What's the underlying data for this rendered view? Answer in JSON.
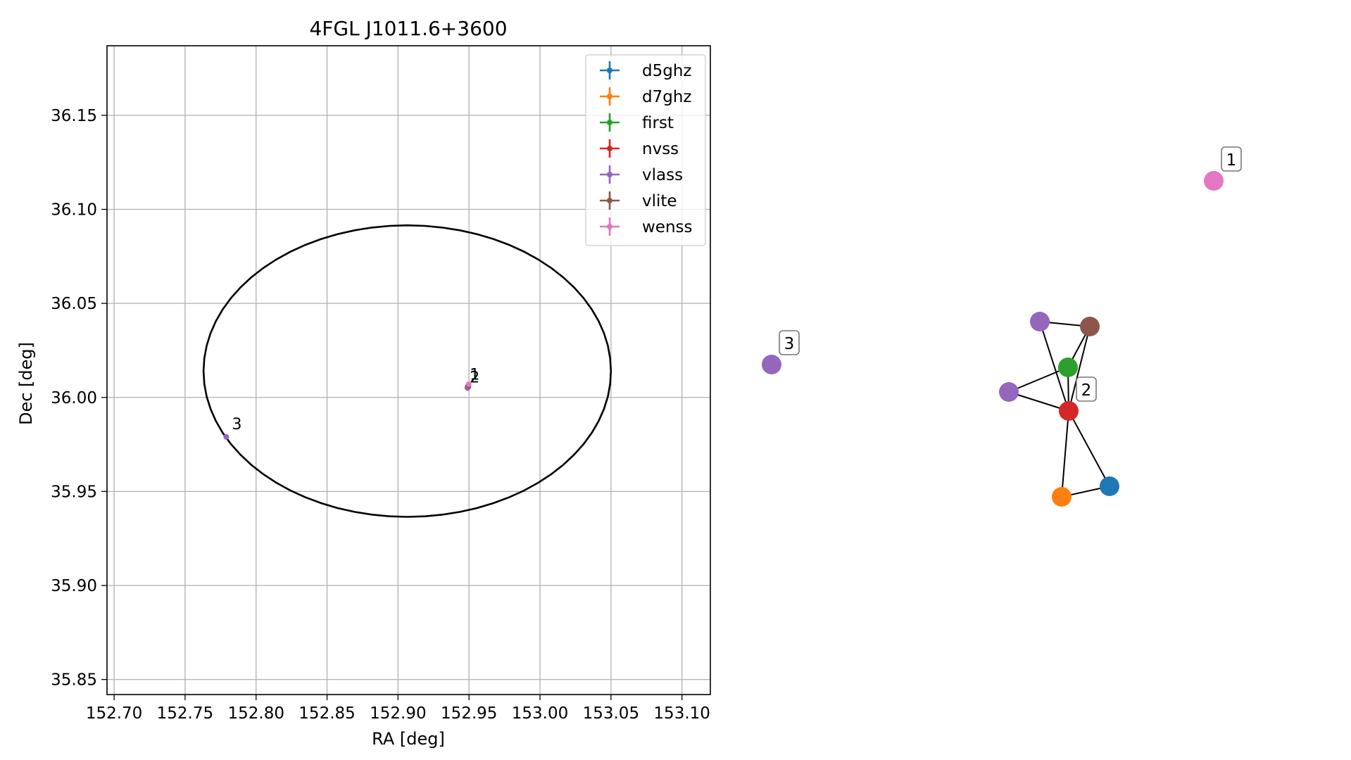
{
  "chart_data": [
    {
      "type": "scatter",
      "title": "4FGL J1011.6+3600",
      "xlabel": "RA [deg]",
      "ylabel": "Dec [deg]",
      "xlim": [
        152.695,
        153.12
      ],
      "ylim": [
        35.842,
        36.187
      ],
      "xticks": [
        "152.70",
        "152.75",
        "152.80",
        "152.85",
        "152.90",
        "152.95",
        "153.00",
        "153.05",
        "153.10"
      ],
      "yticks": [
        "35.85",
        "35.90",
        "35.95",
        "36.00",
        "36.05",
        "36.10",
        "36.15"
      ],
      "grid": true,
      "legend_position": "top-right",
      "series": [
        {
          "name": "d5ghz",
          "color": "#1f77b4",
          "points": [
            [
              152.9495,
              36.0055
            ]
          ]
        },
        {
          "name": "d7ghz",
          "color": "#ff7f0e",
          "points": [
            [
              152.9488,
              36.0052
            ]
          ]
        },
        {
          "name": "first",
          "color": "#2ca02c",
          "points": [
            [
              152.9493,
              36.006
            ]
          ]
        },
        {
          "name": "nvss",
          "color": "#d62728",
          "points": [
            [
              152.9492,
              36.0057
            ]
          ]
        },
        {
          "name": "vlass",
          "color": "#9467bd",
          "points": [
            [
              152.949,
              36.005
            ],
            [
              152.779,
              35.979
            ]
          ]
        },
        {
          "name": "vlite",
          "color": "#8c564b",
          "points": [
            [
              152.9496,
              36.0062
            ]
          ]
        },
        {
          "name": "wenss",
          "color": "#e377c2",
          "points": [
            [
              152.9498,
              36.007
            ]
          ]
        }
      ],
      "ellipse": {
        "center": [
          152.9065,
          36.014
        ],
        "ra_half_width": 0.1435,
        "dec_half_height": 0.0775,
        "color": "#000000"
      },
      "annotations": [
        {
          "text": "1",
          "x": 152.9505,
          "y": 36.0095
        },
        {
          "text": "2",
          "x": 152.9505,
          "y": 36.008
        },
        {
          "text": "3",
          "x": 152.783,
          "y": 35.983
        }
      ]
    },
    {
      "type": "network",
      "nodes": [
        {
          "id": "wenss-1",
          "color": "#e377c2",
          "label": "1"
        },
        {
          "id": "vlass-3",
          "color": "#9467bd",
          "label": "3"
        },
        {
          "id": "vlass-a",
          "color": "#9467bd",
          "label": ""
        },
        {
          "id": "vlite",
          "color": "#8c564b",
          "label": ""
        },
        {
          "id": "first",
          "color": "#2ca02c",
          "label": ""
        },
        {
          "id": "vlass-b",
          "color": "#9467bd",
          "label": ""
        },
        {
          "id": "nvss",
          "color": "#d62728",
          "label": "2"
        },
        {
          "id": "d5ghz",
          "color": "#1f77b4",
          "label": ""
        },
        {
          "id": "d7ghz",
          "color": "#ff7f0e",
          "label": ""
        }
      ],
      "edges": [
        [
          "vlass-a",
          "vlite"
        ],
        [
          "vlass-a",
          "nvss"
        ],
        [
          "vlite",
          "first"
        ],
        [
          "vlite",
          "nvss"
        ],
        [
          "first",
          "vlass-b"
        ],
        [
          "first",
          "nvss"
        ],
        [
          "vlass-b",
          "nvss"
        ],
        [
          "nvss",
          "d5ghz"
        ],
        [
          "nvss",
          "d7ghz"
        ],
        [
          "d7ghz",
          "d5ghz"
        ]
      ]
    }
  ]
}
